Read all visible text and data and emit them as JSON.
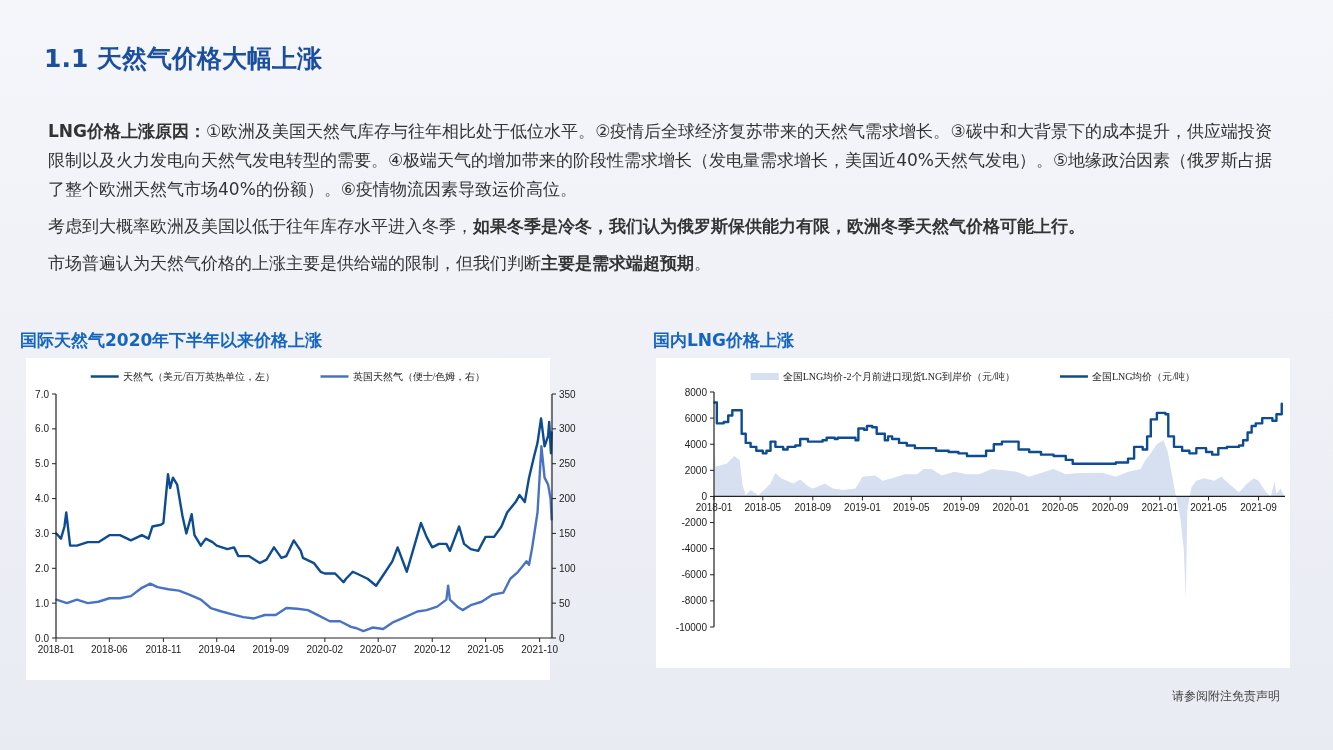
{
  "chart_data": [
    {
      "type": "other",
      "title": "1.1  天然气价格大幅上涨",
      "annotations": [
        "**LNG价格上涨原因：**①欧洲及美国天然气库存与往年相比处于低位水平。②疫情后全球经济复苏带来的天然气需求增长。③碳中和大背景下的成本提升，供应端投资限制以及火力发电向天然气发电转型的需要。④极端天气的增加带来的阶段性需求增长（发电量需求增长，美国近40%天然气发电）。⑤地缘政治因素（俄罗斯占据了整个欧洲天然气市场40%的份额）。⑥疫情物流因素导致运价高位。",
        "考虑到大概率欧洲及美国以低于往年库存水平进入冬季，**如果冬季是冷冬，我们认为俄罗斯保供能力有限，欧洲冬季天然气价格可能上行。**",
        "市场普遍认为天然气价格的上涨主要是供给端的限制，但我们判断**主要是需求端超预期**。",
        "请参阅附注免责声明"
      ]
    },
    {
      "type": "line",
      "title": "国际天然气2020年下半年以来价格上涨",
      "legend": "top",
      "xlim": [
        "2018-01-01",
        "2021-11-05"
      ],
      "xticks": [
        "2018-01",
        "2018-06",
        "2018-11",
        "2019-04",
        "2019-09",
        "2020-02",
        "2020-07",
        "2020-12",
        "2021-05",
        "2021-10"
      ],
      "ylim": [
        0,
        7
      ],
      "yticks": [
        {
          "value": 0,
          "label": "0.0"
        },
        {
          "value": 1,
          "label": "1.0"
        },
        {
          "value": 2,
          "label": "2.0"
        },
        {
          "value": 3,
          "label": "3.0"
        },
        {
          "value": 4,
          "label": "4.0"
        },
        {
          "value": 5,
          "label": "5.0"
        },
        {
          "value": 6,
          "label": "6.0"
        },
        {
          "value": 7,
          "label": "7.0"
        }
      ],
      "y2lim": [
        0,
        350
      ],
      "y2ticks": [
        0,
        50,
        100,
        150,
        200,
        250,
        300,
        350
      ],
      "series": [
        {
          "name": "天然气（美元/百万英热单位，左）",
          "color": "#0d4c92",
          "x": [
            "2018-01-02",
            "2018-01-15",
            "2018-01-25",
            "2018-01-30",
            "2018-02-10",
            "2018-03-01",
            "2018-04-01",
            "2018-05-01",
            "2018-06-01",
            "2018-07-01",
            "2018-08-01",
            "2018-09-01",
            "2018-09-20",
            "2018-10-01",
            "2018-10-25",
            "2018-11-01",
            "2018-11-14",
            "2018-11-20",
            "2018-11-28",
            "2018-12-10",
            "2018-12-25",
            "2019-01-05",
            "2019-01-20",
            "2019-01-28",
            "2019-02-15",
            "2019-03-01",
            "2019-03-20",
            "2019-04-01",
            "2019-05-01",
            "2019-05-20",
            "2019-06-01",
            "2019-07-01",
            "2019-08-01",
            "2019-08-20",
            "2019-09-10",
            "2019-10-01",
            "2019-10-15",
            "2019-11-05",
            "2019-11-25",
            "2019-12-01",
            "2020-01-01",
            "2020-01-20",
            "2020-02-01",
            "2020-03-01",
            "2020-03-25",
            "2020-04-01",
            "2020-04-20",
            "2020-05-01",
            "2020-06-01",
            "2020-06-25",
            "2020-07-15",
            "2020-08-10",
            "2020-08-25",
            "2020-09-20",
            "2020-10-10",
            "2020-10-30",
            "2020-11-15",
            "2020-12-01",
            "2020-12-20",
            "2021-01-10",
            "2021-01-20",
            "2021-02-15",
            "2021-03-01",
            "2021-03-20",
            "2021-04-10",
            "2021-05-01",
            "2021-05-25",
            "2021-06-15",
            "2021-07-01",
            "2021-07-25",
            "2021-08-05",
            "2021-08-20",
            "2021-09-01",
            "2021-09-15",
            "2021-09-25",
            "2021-10-05",
            "2021-10-15",
            "2021-10-25",
            "2021-10-28",
            "2021-11-02",
            "2021-11-04"
          ],
          "values": [
            3.0,
            2.85,
            3.2,
            3.6,
            2.65,
            2.65,
            2.75,
            2.75,
            2.95,
            2.95,
            2.8,
            2.95,
            2.85,
            3.2,
            3.25,
            3.3,
            4.7,
            4.3,
            4.6,
            4.4,
            3.5,
            3.0,
            3.55,
            2.95,
            2.65,
            2.85,
            2.75,
            2.65,
            2.55,
            2.6,
            2.35,
            2.35,
            2.15,
            2.25,
            2.6,
            2.3,
            2.35,
            2.8,
            2.5,
            2.3,
            2.15,
            1.9,
            1.85,
            1.85,
            1.6,
            1.7,
            1.9,
            1.85,
            1.7,
            1.5,
            1.8,
            2.2,
            2.6,
            1.9,
            2.6,
            3.3,
            2.9,
            2.6,
            2.7,
            2.7,
            2.5,
            3.2,
            2.7,
            2.55,
            2.5,
            2.9,
            2.9,
            3.2,
            3.6,
            3.9,
            4.1,
            3.9,
            4.6,
            5.2,
            5.6,
            6.3,
            5.5,
            5.8,
            6.2,
            5.3,
            5.9
          ]
        },
        {
          "name": "英国天然气（便士/色姆，右）",
          "color": "#4a72c4",
          "axis": "y2",
          "x": [
            "2018-01-02",
            "2018-02-01",
            "2018-03-01",
            "2018-04-01",
            "2018-05-01",
            "2018-06-01",
            "2018-07-01",
            "2018-08-01",
            "2018-09-01",
            "2018-09-25",
            "2018-10-15",
            "2018-11-15",
            "2018-12-15",
            "2019-01-15",
            "2019-02-15",
            "2019-03-15",
            "2019-04-15",
            "2019-05-15",
            "2019-06-15",
            "2019-07-15",
            "2019-08-15",
            "2019-09-15",
            "2019-10-15",
            "2019-11-15",
            "2019-12-15",
            "2020-01-15",
            "2020-02-15",
            "2020-03-15",
            "2020-04-15",
            "2020-05-01",
            "2020-05-20",
            "2020-06-15",
            "2020-07-15",
            "2020-08-10",
            "2020-09-15",
            "2020-10-20",
            "2020-11-15",
            "2020-12-15",
            "2021-01-10",
            "2021-01-15",
            "2021-01-20",
            "2021-02-10",
            "2021-02-25",
            "2021-03-20",
            "2021-04-20",
            "2021-05-20",
            "2021-06-20",
            "2021-07-10",
            "2021-08-01",
            "2021-08-25",
            "2021-09-01",
            "2021-09-10",
            "2021-09-25",
            "2021-10-06",
            "2021-10-15",
            "2021-10-25",
            "2021-11-01",
            "2021-11-04"
          ],
          "values": [
            55,
            50,
            55,
            50,
            52,
            57,
            57,
            60,
            72,
            78,
            73,
            70,
            68,
            62,
            55,
            43,
            38,
            34,
            30,
            28,
            33,
            33,
            43,
            42,
            40,
            32,
            24,
            24,
            16,
            14,
            10,
            15,
            13,
            22,
            30,
            38,
            40,
            45,
            55,
            75,
            55,
            45,
            40,
            47,
            52,
            62,
            65,
            85,
            95,
            110,
            105,
            130,
            180,
            275,
            230,
            220,
            200,
            170
          ]
        }
      ]
    },
    {
      "type": "step",
      "title": "国内LNG价格上涨",
      "legend": "top",
      "xlim": [
        "2018-01-01",
        "2021-11-05"
      ],
      "xticks": [
        "2018-01",
        "2018-05",
        "2018-09",
        "2019-01",
        "2019-05",
        "2019-09",
        "2020-01",
        "2020-05",
        "2020-09",
        "2021-01",
        "2021-05",
        "2021-09"
      ],
      "ylim": [
        -10000,
        8000
      ],
      "yticks": [
        -10000,
        -8000,
        -6000,
        -4000,
        -2000,
        0,
        2000,
        4000,
        6000,
        8000
      ],
      "series": [
        {
          "name": "全国LNG均价-2个月前进口现货LNG到岸价（元/吨）",
          "color": "#d6e0f0",
          "type": "area",
          "x": [
            "2018-01-02",
            "2018-01-05",
            "2018-02-01",
            "2018-02-20",
            "2018-03-05",
            "2018-03-12",
            "2018-03-20",
            "2018-04-01",
            "2018-04-20",
            "2018-05-01",
            "2018-05-20",
            "2018-06-01",
            "2018-06-15",
            "2018-07-15",
            "2018-08-01",
            "2018-08-20",
            "2018-09-01",
            "2018-10-01",
            "2018-10-20",
            "2018-11-15",
            "2018-12-15",
            "2019-01-01",
            "2019-02-01",
            "2019-02-20",
            "2019-03-15",
            "2019-04-15",
            "2019-05-15",
            "2019-06-01",
            "2019-06-20",
            "2019-07-15",
            "2019-08-15",
            "2019-09-15",
            "2019-10-15",
            "2019-11-15",
            "2019-12-15",
            "2020-01-15",
            "2020-02-15",
            "2020-03-15",
            "2020-04-15",
            "2020-05-15",
            "2020-06-15",
            "2020-07-15",
            "2020-08-15",
            "2020-09-15",
            "2020-10-15",
            "2020-11-15",
            "2020-11-25",
            "2020-12-10",
            "2020-12-25",
            "2021-01-10",
            "2021-01-20",
            "2021-02-01",
            "2021-02-10",
            "2021-02-20",
            "2021-03-01",
            "2021-03-06",
            "2021-03-10",
            "2021-03-20",
            "2021-04-01",
            "2021-04-20",
            "2021-05-15",
            "2021-06-01",
            "2021-06-20",
            "2021-07-15",
            "2021-08-01",
            "2021-08-20",
            "2021-09-01",
            "2021-09-20",
            "2021-10-01",
            "2021-10-10",
            "2021-10-15",
            "2021-10-25",
            "2021-11-03"
          ],
          "values": [
            4100,
            2300,
            2500,
            3100,
            2800,
            900,
            100,
            500,
            100,
            400,
            1000,
            1800,
            1400,
            1000,
            1300,
            800,
            600,
            1000,
            600,
            500,
            600,
            1500,
            1600,
            1200,
            1400,
            1700,
            1700,
            2100,
            2100,
            1600,
            1900,
            1700,
            1700,
            2100,
            2000,
            1900,
            1500,
            1800,
            2100,
            1700,
            1800,
            1800,
            1800,
            1500,
            1900,
            2100,
            2700,
            3300,
            4000,
            4300,
            3500,
            1500,
            0,
            -1500,
            -4000,
            -7800,
            -1000,
            700,
            1200,
            1400,
            1200,
            1500,
            1000,
            300,
            900,
            1400,
            1200,
            300,
            0,
            1100,
            200,
            600,
            0
          ]
        },
        {
          "name": "全国LNG均价（元/吨）",
          "color": "#0d4c92",
          "x": [
            "2018-01-02",
            "2018-01-08",
            "2018-01-25",
            "2018-02-05",
            "2018-02-15",
            "2018-03-10",
            "2018-03-20",
            "2018-04-01",
            "2018-04-15",
            "2018-05-01",
            "2018-05-10",
            "2018-05-20",
            "2018-06-01",
            "2018-06-20",
            "2018-07-01",
            "2018-07-20",
            "2018-08-01",
            "2018-08-20",
            "2018-09-10",
            "2018-09-25",
            "2018-10-05",
            "2018-10-25",
            "2018-11-01",
            "2018-12-15",
            "2018-12-22",
            "2019-01-05",
            "2019-01-12",
            "2019-01-25",
            "2019-02-05",
            "2019-02-25",
            "2019-03-05",
            "2019-03-15",
            "2019-04-01",
            "2019-04-20",
            "2019-05-10",
            "2019-06-01",
            "2019-07-01",
            "2019-08-01",
            "2019-08-25",
            "2019-09-15",
            "2019-10-15",
            "2019-11-01",
            "2019-11-20",
            "2019-12-10",
            "2020-01-05",
            "2020-01-20",
            "2020-02-15",
            "2020-03-15",
            "2020-04-15",
            "2020-05-15",
            "2020-06-01",
            "2020-08-01",
            "2020-09-15",
            "2020-10-15",
            "2020-10-30",
            "2020-11-20",
            "2020-12-01",
            "2020-12-10",
            "2020-12-25",
            "2021-01-15",
            "2021-01-22",
            "2021-02-05",
            "2021-02-25",
            "2021-03-15",
            "2021-04-01",
            "2021-04-25",
            "2021-05-10",
            "2021-05-25",
            "2021-06-15",
            "2021-07-15",
            "2021-07-25",
            "2021-08-05",
            "2021-08-15",
            "2021-08-25",
            "2021-09-10",
            "2021-09-25",
            "2021-10-05",
            "2021-10-15",
            "2021-10-28"
          ],
          "values": [
            7200,
            5600,
            5700,
            6200,
            6600,
            4800,
            4100,
            3800,
            3500,
            3300,
            3500,
            4200,
            3800,
            3600,
            3800,
            3900,
            4400,
            4200,
            4200,
            4300,
            4500,
            4400,
            4500,
            4300,
            5200,
            5100,
            5400,
            5300,
            4800,
            4300,
            4600,
            4400,
            4100,
            3900,
            3700,
            3700,
            3500,
            3400,
            3300,
            3100,
            3100,
            3500,
            4000,
            4200,
            4200,
            3600,
            3400,
            3200,
            3100,
            2800,
            2500,
            2500,
            2600,
            2900,
            3800,
            3600,
            4600,
            5900,
            6400,
            6300,
            4600,
            3800,
            3500,
            3300,
            3700,
            3400,
            3200,
            3700,
            3800,
            3900,
            4300,
            4900,
            5400,
            5600,
            6000,
            6000,
            5800,
            6300,
            7100
          ]
        }
      ]
    }
  ]
}
